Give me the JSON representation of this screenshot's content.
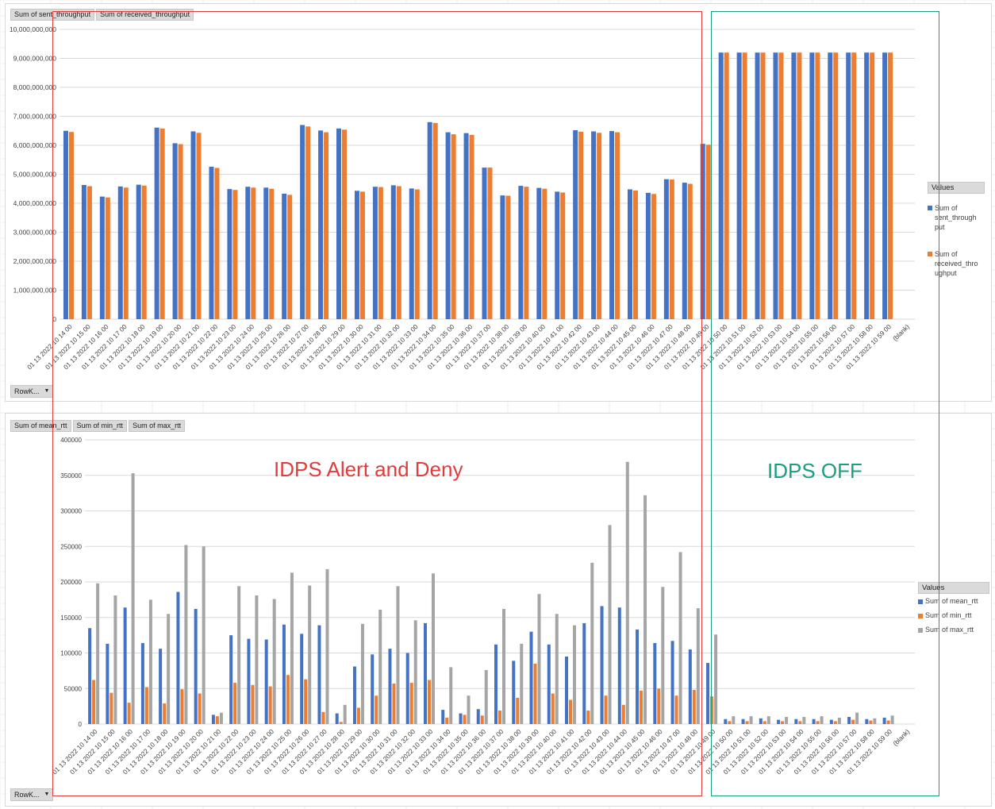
{
  "colors": {
    "sent": "#4472C4",
    "received": "#ED7D31",
    "max": "#A5A5A5",
    "gridline": "#D9D9D9",
    "red_box": "#E03C3C",
    "teal_box": "#1A9E80"
  },
  "top_chart": {
    "field_buttons": [
      "Sum of sent_throughput",
      "Sum of received_throughput"
    ],
    "row_button": "RowK...",
    "legend_title": "Values",
    "legend_items": [
      {
        "label": "Sum of sent_throughput",
        "line1": "Sum of",
        "line2": "sent_through",
        "line3": "put"
      },
      {
        "label": "Sum of received_throughput",
        "line1": "Sum of",
        "line2": "received_thro",
        "line3": "ughput"
      }
    ]
  },
  "bottom_chart": {
    "field_buttons": [
      "Sum of mean_rtt",
      "Sum of min_rtt",
      "Sum of max_rtt"
    ],
    "row_button": "RowK...",
    "legend_title": "Values",
    "legend_items": [
      "Sum of mean_rtt",
      "Sum of min_rtt",
      "Sum of max_rtt"
    ]
  },
  "annotations": {
    "alert_label": "IDPS Alert and Deny",
    "off_label": "IDPS OFF"
  },
  "chart_data": [
    {
      "type": "bar",
      "categories": [
        "01 13 2022 10 14 00",
        "01 13 2022 10 15 00",
        "01 13 2022 10 16 00",
        "01 13 2022 10 17 00",
        "01 13 2022 10 18 00",
        "01 13 2022 10 19 00",
        "01 13 2022 10 20 00",
        "01 13 2022 10 21 00",
        "01 13 2022 10 22 00",
        "01 13 2022 10 23 00",
        "01 13 2022 10 24 00",
        "01 13 2022 10 25 00",
        "01 13 2022 10 26 00",
        "01 13 2022 10 27 00",
        "01 13 2022 10 28 00",
        "01 13 2022 10 29 00",
        "01 13 2022 10 30 00",
        "01 13 2022 10 31 00",
        "01 13 2022 10 32 00",
        "01 13 2022 10 33 00",
        "01 13 2022 10 34 00",
        "01 13 2022 10 35 00",
        "01 13 2022 10 36 00",
        "01 13 2022 10 37 00",
        "01 13 2022 10 38 00",
        "01 13 2022 10 39 00",
        "01 13 2022 10 40 00",
        "01 13 2022 10 41 00",
        "01 13 2022 10 42 00",
        "01 13 2022 10 43 00",
        "01 13 2022 10 44 00",
        "01 13 2022 10 45 00",
        "01 13 2022 10 46 00",
        "01 13 2022 10 47 00",
        "01 13 2022 10 48 00",
        "01 13 2022 10 49 00",
        "01 13 2022 10 50 00",
        "01 13 2022 10 51 00",
        "01 13 2022 10 52 00",
        "01 13 2022 10 53 00",
        "01 13 2022 10 54 00",
        "01 13 2022 10 55 00",
        "01 13 2022 10 56 00",
        "01 13 2022 10 57 00",
        "01 13 2022 10 58 00",
        "01 13 2022 10 59 00",
        "(blank)"
      ],
      "series": [
        {
          "name": "Sum of sent_throughput",
          "values": [
            6500000000,
            4630000000,
            4230000000,
            4580000000,
            4640000000,
            6610000000,
            6070000000,
            6480000000,
            5260000000,
            4490000000,
            4570000000,
            4540000000,
            4330000000,
            6700000000,
            6510000000,
            6580000000,
            4430000000,
            4570000000,
            4620000000,
            4510000000,
            6800000000,
            6450000000,
            6420000000,
            5230000000,
            4270000000,
            4600000000,
            4530000000,
            4400000000,
            6520000000,
            6480000000,
            6490000000,
            4480000000,
            4360000000,
            4830000000,
            4710000000,
            6050000000,
            9200000000,
            9200000000,
            9200000000,
            9200000000,
            9200000000,
            9200000000,
            9200000000,
            9200000000,
            9200000000,
            9200000000,
            0
          ]
        },
        {
          "name": "Sum of received_throughput",
          "values": [
            6460000000,
            4590000000,
            4200000000,
            4540000000,
            4610000000,
            6580000000,
            6040000000,
            6430000000,
            5220000000,
            4460000000,
            4540000000,
            4500000000,
            4290000000,
            6650000000,
            6450000000,
            6540000000,
            4400000000,
            4560000000,
            4590000000,
            4480000000,
            6770000000,
            6380000000,
            6360000000,
            5230000000,
            4260000000,
            4570000000,
            4500000000,
            4370000000,
            6470000000,
            6430000000,
            6450000000,
            4440000000,
            4320000000,
            4820000000,
            4670000000,
            6020000000,
            9200000000,
            9200000000,
            9200000000,
            9200000000,
            9200000000,
            9200000000,
            9200000000,
            9200000000,
            9200000000,
            9200000000,
            0
          ]
        }
      ],
      "ylim": [
        0,
        10000000000
      ],
      "y_ticks": [
        "0",
        "1,000,000,000",
        "2,000,000,000",
        "3,000,000,000",
        "4,000,000,000",
        "5,000,000,000",
        "6,000,000,000",
        "7,000,000,000",
        "8,000,000,000",
        "9,000,000,000",
        "10,000,000,000"
      ],
      "grid": true,
      "legend": "right"
    },
    {
      "type": "bar",
      "categories": [
        "01 13 2022 10 14 00",
        "01 13 2022 10 15 00",
        "01 13 2022 10 16 00",
        "01 13 2022 10 17 00",
        "01 13 2022 10 18 00",
        "01 13 2022 10 19 00",
        "01 13 2022 10 20 00",
        "01 13 2022 10 21 00",
        "01 13 2022 10 22 00",
        "01 13 2022 10 23 00",
        "01 13 2022 10 24 00",
        "01 13 2022 10 25 00",
        "01 13 2022 10 26 00",
        "01 13 2022 10 27 00",
        "01 13 2022 10 28 00",
        "01 13 2022 10 29 00",
        "01 13 2022 10 30 00",
        "01 13 2022 10 31 00",
        "01 13 2022 10 32 00",
        "01 13 2022 10 33 00",
        "01 13 2022 10 34 00",
        "01 13 2022 10 35 00",
        "01 13 2022 10 36 00",
        "01 13 2022 10 37 00",
        "01 13 2022 10 38 00",
        "01 13 2022 10 39 00",
        "01 13 2022 10 40 00",
        "01 13 2022 10 41 00",
        "01 13 2022 10 42 00",
        "01 13 2022 10 43 00",
        "01 13 2022 10 44 00",
        "01 13 2022 10 45 00",
        "01 13 2022 10 46 00",
        "01 13 2022 10 47 00",
        "01 13 2022 10 48 00",
        "01 13 2022 10 49 00",
        "01 13 2022 10 50 00",
        "01 13 2022 10 51 00",
        "01 13 2022 10 52 00",
        "01 13 2022 10 53 00",
        "01 13 2022 10 54 00",
        "01 13 2022 10 55 00",
        "01 13 2022 10 56 00",
        "01 13 2022 10 57 00",
        "01 13 2022 10 58 00",
        "01 13 2022 10 59 00",
        "(blank)"
      ],
      "series": [
        {
          "name": "Sum of mean_rtt",
          "values": [
            135000,
            113000,
            164000,
            114000,
            106000,
            186000,
            162000,
            13000,
            125000,
            120000,
            119000,
            140000,
            127000,
            139000,
            15000,
            81000,
            98000,
            106000,
            100000,
            142000,
            20000,
            15000,
            21000,
            112000,
            89000,
            130000,
            112000,
            95000,
            142000,
            166000,
            164000,
            133000,
            114000,
            117000,
            105000,
            86000,
            7000,
            7000,
            8000,
            6000,
            7000,
            7000,
            6000,
            10000,
            7000,
            9000,
            0
          ]
        },
        {
          "name": "Sum of min_rtt",
          "values": [
            62000,
            44000,
            30000,
            52000,
            29000,
            49000,
            43000,
            11000,
            58000,
            55000,
            53000,
            69000,
            63000,
            17000,
            3000,
            23000,
            40000,
            57000,
            58000,
            62000,
            9000,
            13000,
            12000,
            19000,
            37000,
            85000,
            43000,
            34000,
            19000,
            40000,
            27000,
            47000,
            50000,
            40000,
            48000,
            39000,
            4000,
            4000,
            4000,
            4000,
            4000,
            4000,
            4000,
            6000,
            5000,
            5000,
            0
          ]
        },
        {
          "name": "Sum of max_rtt",
          "values": [
            198000,
            181000,
            353000,
            175000,
            155000,
            252000,
            250000,
            16000,
            194000,
            181000,
            176000,
            213000,
            195000,
            218000,
            27000,
            141000,
            161000,
            194000,
            146000,
            212000,
            80000,
            40000,
            76000,
            162000,
            113000,
            183000,
            155000,
            139000,
            227000,
            280000,
            369000,
            322000,
            193000,
            242000,
            163000,
            126000,
            11000,
            11000,
            11000,
            10000,
            10000,
            11000,
            9000,
            16000,
            8000,
            12000,
            0
          ]
        }
      ],
      "ylim": [
        0,
        400000
      ],
      "y_ticks": [
        "0",
        "50000",
        "100000",
        "150000",
        "200000",
        "250000",
        "300000",
        "350000",
        "400000"
      ],
      "grid": true,
      "legend": "right"
    }
  ]
}
